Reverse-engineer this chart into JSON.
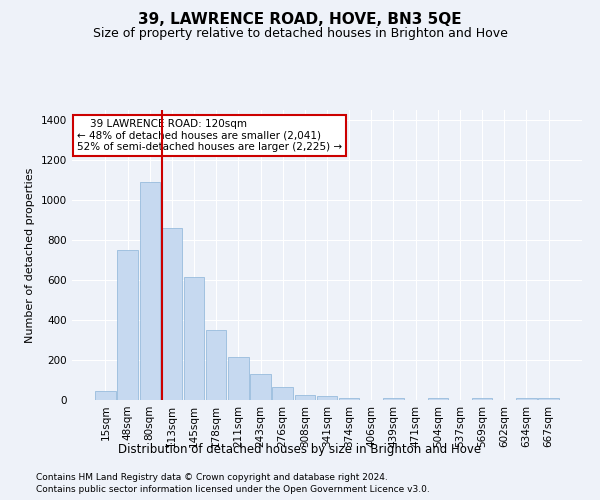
{
  "title": "39, LAWRENCE ROAD, HOVE, BN3 5QE",
  "subtitle": "Size of property relative to detached houses in Brighton and Hove",
  "xlabel": "Distribution of detached houses by size in Brighton and Hove",
  "ylabel": "Number of detached properties",
  "footnote1": "Contains HM Land Registry data © Crown copyright and database right 2024.",
  "footnote2": "Contains public sector information licensed under the Open Government Licence v3.0.",
  "annotation_line1": "    39 LAWRENCE ROAD: 120sqm",
  "annotation_line2": "← 48% of detached houses are smaller (2,041)",
  "annotation_line3": "52% of semi-detached houses are larger (2,225) →",
  "bar_color": "#c6d9f0",
  "bar_edge_color": "#8ab4d8",
  "vline_color": "#cc0000",
  "vline_x_idx": 3,
  "categories": [
    "15sqm",
    "48sqm",
    "80sqm",
    "113sqm",
    "145sqm",
    "178sqm",
    "211sqm",
    "243sqm",
    "276sqm",
    "308sqm",
    "341sqm",
    "374sqm",
    "406sqm",
    "439sqm",
    "471sqm",
    "504sqm",
    "537sqm",
    "569sqm",
    "602sqm",
    "634sqm",
    "667sqm"
  ],
  "bar_values": [
    47,
    750,
    1090,
    860,
    615,
    350,
    215,
    130,
    65,
    25,
    20,
    10,
    0,
    10,
    0,
    10,
    0,
    10,
    0,
    10,
    10
  ],
  "ylim": [
    0,
    1450
  ],
  "yticks": [
    0,
    200,
    400,
    600,
    800,
    1000,
    1200,
    1400
  ],
  "bg_color": "#eef2f9",
  "grid_color": "#ffffff",
  "title_fontsize": 11,
  "subtitle_fontsize": 9,
  "tick_fontsize": 7.5,
  "ylabel_fontsize": 8,
  "xlabel_fontsize": 8.5
}
